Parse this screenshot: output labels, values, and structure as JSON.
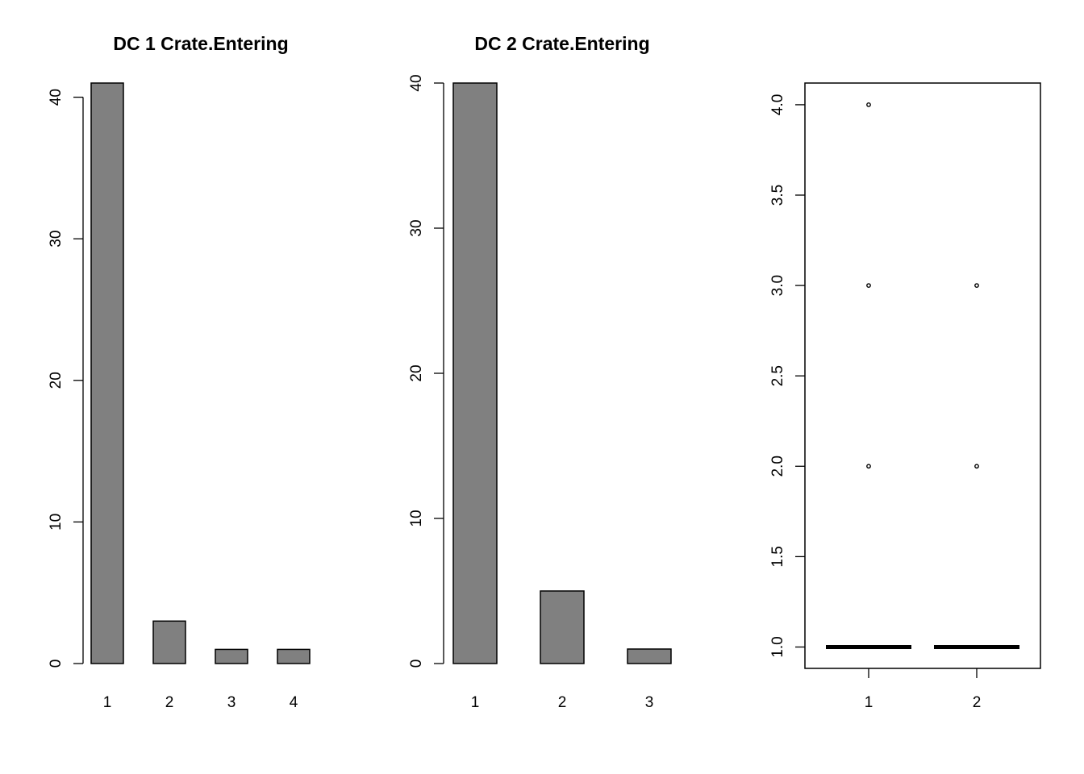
{
  "chart_data": [
    {
      "type": "bar",
      "title": "DC 1 Crate.Entering",
      "categories": [
        "1",
        "2",
        "3",
        "4"
      ],
      "values": [
        41,
        3,
        1,
        1
      ],
      "ylim": [
        0,
        41
      ],
      "yticks": [
        "0",
        "10",
        "20",
        "30",
        "40"
      ],
      "grid": false
    },
    {
      "type": "bar",
      "title": "DC 2 Crate.Entering",
      "categories": [
        "1",
        "2",
        "3"
      ],
      "values": [
        40,
        5,
        1
      ],
      "ylim": [
        0,
        40
      ],
      "yticks": [
        "0",
        "10",
        "20",
        "30",
        "40"
      ],
      "grid": false
    },
    {
      "type": "boxplot",
      "title": "",
      "categories": [
        "1",
        "2"
      ],
      "series": [
        {
          "median": 1.0,
          "q1": 1.0,
          "q3": 1.0,
          "whisker_low": 1.0,
          "whisker_high": 1.0,
          "outliers": [
            2.0,
            3.0,
            4.0
          ]
        },
        {
          "median": 1.0,
          "q1": 1.0,
          "q3": 1.0,
          "whisker_low": 1.0,
          "whisker_high": 1.0,
          "outliers": [
            2.0,
            3.0
          ]
        }
      ],
      "ylim": [
        1.0,
        4.0
      ],
      "yticks": [
        "1.0",
        "1.5",
        "2.0",
        "2.5",
        "3.0",
        "3.5",
        "4.0"
      ],
      "grid": false
    }
  ]
}
